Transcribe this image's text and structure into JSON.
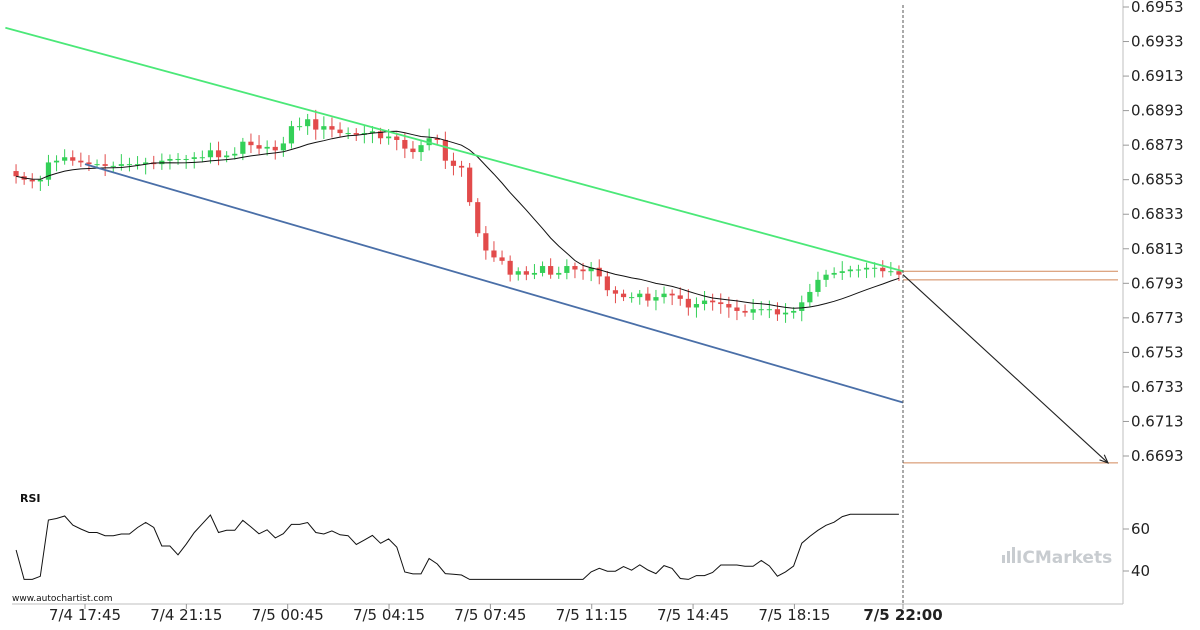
{
  "watermark": "www.autochartist.com",
  "brand": {
    "prefix": "IC",
    "suffix": "Markets"
  },
  "rsi_title": "RSI",
  "colors": {
    "up": "#34d058",
    "down": "#e24b4b",
    "resistance": "#4be878",
    "support": "#4a6fa8",
    "level": "#d2895a",
    "ma": "#111111",
    "rsi": "#111111",
    "forecast": "#222222",
    "grid": "#e6e6e6"
  },
  "chart_data": {
    "type": "candlestick",
    "price_axis": {
      "ticks": [
        "0.6953",
        "0.6933",
        "0.6913",
        "0.6893",
        "0.6873",
        "0.6853",
        "0.6833",
        "0.6813",
        "0.6793",
        "0.6773",
        "0.6753",
        "0.6733",
        "0.6713",
        "0.6693"
      ],
      "range": [
        0.6693,
        0.6953
      ]
    },
    "rsi_axis": {
      "ticks": [
        "60",
        "40"
      ]
    },
    "time_axis": {
      "ticks": [
        "7/4 17:45",
        "7/4 21:15",
        "7/5 00:45",
        "7/5 04:15",
        "7/5 07:45",
        "7/5 11:15",
        "7/5 14:45",
        "7/5 18:15",
        "7/5 22:00"
      ],
      "current": "7/5 22:00"
    },
    "close_values": [
      0.6855,
      0.6853,
      0.6852,
      0.6853,
      0.6863,
      0.6864,
      0.6866,
      0.6864,
      0.6863,
      0.6862,
      0.6862,
      0.6861,
      0.6861,
      0.6862,
      0.6862,
      0.6862,
      0.6863,
      0.6862,
      0.6864,
      0.6865,
      0.6865,
      0.6865,
      0.6866,
      0.6866,
      0.687,
      0.6866,
      0.6867,
      0.6868,
      0.6875,
      0.6873,
      0.6871,
      0.6872,
      0.687,
      0.6874,
      0.6884,
      0.6884,
      0.6888,
      0.6882,
      0.6884,
      0.6882,
      0.688,
      0.688,
      0.6879,
      0.688,
      0.6881,
      0.6877,
      0.6878,
      0.6876,
      0.6871,
      0.6869,
      0.6873,
      0.6877,
      0.6876,
      0.6864,
      0.6861,
      0.686,
      0.684,
      0.6822,
      0.6812,
      0.6808,
      0.6806,
      0.6798,
      0.68,
      0.6798,
      0.6799,
      0.6803,
      0.6798,
      0.6799,
      0.6803,
      0.6801,
      0.68,
      0.6802,
      0.6797,
      0.6789,
      0.6787,
      0.6785,
      0.6785,
      0.6787,
      0.6783,
      0.6785,
      0.6787,
      0.6786,
      0.6784,
      0.6779,
      0.6781,
      0.6783,
      0.6782,
      0.6781,
      0.6779,
      0.6777,
      0.6776,
      0.6778,
      0.6778,
      0.6778,
      0.6775,
      0.6776,
      0.6777,
      0.6782,
      0.6788,
      0.6795,
      0.6798,
      0.6799,
      0.68,
      0.6801,
      0.6801,
      0.6802,
      0.6802,
      0.68,
      0.68,
      0.6798
    ],
    "resistance_line": {
      "start": [
        "7/4 15:00",
        0.6941
      ],
      "end": [
        "7/5 22:00",
        0.68
      ]
    },
    "support_line": {
      "start": [
        "7/4 17:45",
        0.6862
      ],
      "end": [
        "7/5 22:00",
        0.6724
      ]
    },
    "levels": [
      0.68,
      0.6795,
      0.6689
    ],
    "forecast_arrow": {
      "from": [
        "7/5 22:00",
        0.6798
      ],
      "to": 0.6689
    }
  }
}
